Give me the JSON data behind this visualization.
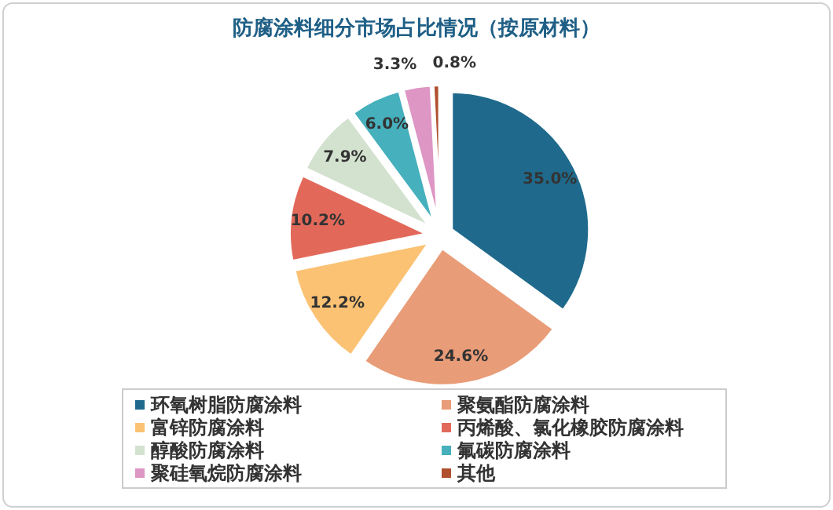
{
  "chart_data": {
    "type": "pie",
    "title": "防腐涂料细分市场占比情况（按原材料）",
    "categories": [
      "环氧树脂防腐涂料",
      "聚氨酯防腐涂料",
      "富锌防腐涂料",
      "丙烯酸、氯化橡胶防腐涂料",
      "醇酸防腐涂料",
      "氟碳防腐涂料",
      "聚硅氧烷防腐涂料",
      "其他"
    ],
    "values": [
      35.0,
      24.6,
      12.2,
      10.2,
      7.9,
      6.0,
      3.3,
      0.8
    ],
    "value_labels": [
      "35.0%",
      "24.6%",
      "12.2%",
      "10.2%",
      "7.9%",
      "6.0%",
      "3.3%",
      "0.8%"
    ],
    "colors": [
      "#1f6a8c",
      "#e89c77",
      "#fbc274",
      "#e2695a",
      "#d3e2cf",
      "#46b0bd",
      "#de96c4",
      "#b0502e"
    ],
    "legend": "bottom"
  }
}
